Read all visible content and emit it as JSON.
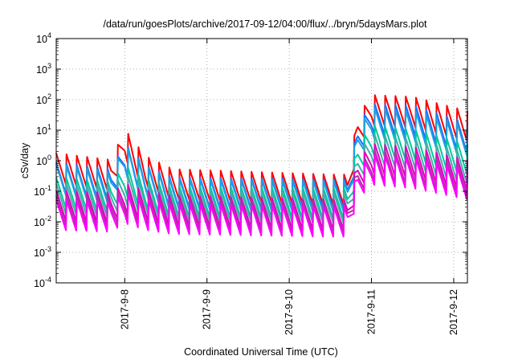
{
  "chart_data": {
    "type": "line",
    "title": "/data/run/goesPlots/archive/2017-09-12/04:00/flux/../bryn/5daysMars.plot",
    "xlabel": "Coordinated Universal Time (UTC)",
    "ylabel": "cSv/day",
    "y_scale": "log",
    "ylim": [
      0.0001,
      10000
    ],
    "xlim": [
      "2017-09-07 04:00",
      "2017-09-12 04:00"
    ],
    "x_ticks": [
      "2017-9-8",
      "2017-9-9",
      "2017-9-10",
      "2017-9-11",
      "2017-9-12"
    ],
    "y_ticks": [
      {
        "base": "10",
        "exp": "-4"
      },
      {
        "base": "10",
        "exp": "-3"
      },
      {
        "base": "10",
        "exp": "-2"
      },
      {
        "base": "10",
        "exp": "-1"
      },
      {
        "base": "10",
        "exp": "0"
      },
      {
        "base": "10",
        "exp": "1"
      },
      {
        "base": "10",
        "exp": "2"
      },
      {
        "base": "10",
        "exp": "3"
      },
      {
        "base": "10",
        "exp": "4"
      }
    ],
    "grid": true,
    "sawtooth_period_hours": 3,
    "series": [
      {
        "color": "#ff0000",
        "points": [
          [
            "2017-09-07 04:00",
            0.5
          ],
          [
            "2017-09-07 20:00",
            0.3
          ],
          [
            "2017-09-08 00:00",
            3.0
          ],
          [
            "2017-09-08 06:00",
            0.4
          ],
          [
            "2017-09-08 14:00",
            0.15
          ],
          [
            "2017-09-10 12:00",
            0.1
          ],
          [
            "2017-09-10 17:00",
            0.1
          ],
          [
            "2017-09-10 20:00",
            8
          ],
          [
            "2017-09-11 00:00",
            40
          ],
          [
            "2017-09-11 12:00",
            35
          ],
          [
            "2017-09-12 04:00",
            12
          ]
        ]
      },
      {
        "color": "#1f6fff",
        "points": [
          [
            "2017-09-07 04:00",
            0.25
          ],
          [
            "2017-09-07 20:00",
            0.15
          ],
          [
            "2017-09-08 00:00",
            1.0
          ],
          [
            "2017-09-08 06:00",
            0.2
          ],
          [
            "2017-09-08 14:00",
            0.08
          ],
          [
            "2017-09-10 12:00",
            0.07
          ],
          [
            "2017-09-10 17:00",
            0.07
          ],
          [
            "2017-09-10 20:00",
            4
          ],
          [
            "2017-09-11 00:00",
            20
          ],
          [
            "2017-09-11 12:00",
            18
          ],
          [
            "2017-09-12 04:00",
            5
          ]
        ]
      },
      {
        "color": "#1ca0e0",
        "points": [
          [
            "2017-09-07 04:00",
            0.22
          ],
          [
            "2017-09-07 20:00",
            0.12
          ],
          [
            "2017-09-08 00:00",
            0.9
          ],
          [
            "2017-09-08 06:00",
            0.18
          ],
          [
            "2017-09-08 14:00",
            0.07
          ],
          [
            "2017-09-10 12:00",
            0.06
          ],
          [
            "2017-09-10 17:00",
            0.06
          ],
          [
            "2017-09-10 20:00",
            3
          ],
          [
            "2017-09-11 00:00",
            15
          ],
          [
            "2017-09-11 12:00",
            12
          ],
          [
            "2017-09-12 04:00",
            4
          ]
        ]
      },
      {
        "color": "#00c8a0",
        "points": [
          [
            "2017-09-07 04:00",
            0.08
          ],
          [
            "2017-09-07 20:00",
            0.06
          ],
          [
            "2017-09-08 00:00",
            0.2
          ],
          [
            "2017-09-08 06:00",
            0.07
          ],
          [
            "2017-09-08 14:00",
            0.04
          ],
          [
            "2017-09-10 12:00",
            0.035
          ],
          [
            "2017-09-10 17:00",
            0.035
          ],
          [
            "2017-09-10 20:00",
            1
          ],
          [
            "2017-09-11 00:00",
            4
          ],
          [
            "2017-09-11 12:00",
            3
          ],
          [
            "2017-09-12 04:00",
            1
          ]
        ]
      },
      {
        "color": "#40b0a8",
        "points": [
          [
            "2017-09-07 04:00",
            0.05
          ],
          [
            "2017-09-07 20:00",
            0.04
          ],
          [
            "2017-09-08 00:00",
            0.1
          ],
          [
            "2017-09-08 06:00",
            0.05
          ],
          [
            "2017-09-08 14:00",
            0.03
          ],
          [
            "2017-09-10 12:00",
            0.025
          ],
          [
            "2017-09-10 17:00",
            0.025
          ],
          [
            "2017-09-10 20:00",
            0.5
          ],
          [
            "2017-09-11 00:00",
            2
          ],
          [
            "2017-09-11 12:00",
            1.5
          ],
          [
            "2017-09-12 04:00",
            0.5
          ]
        ]
      },
      {
        "color": "#e000c0",
        "points": [
          [
            "2017-09-07 04:00",
            0.03
          ],
          [
            "2017-09-07 20:00",
            0.025
          ],
          [
            "2017-09-08 00:00",
            0.05
          ],
          [
            "2017-09-08 06:00",
            0.03
          ],
          [
            "2017-09-08 14:00",
            0.02
          ],
          [
            "2017-09-10 12:00",
            0.015
          ],
          [
            "2017-09-10 17:00",
            0.015
          ],
          [
            "2017-09-10 20:00",
            0.3
          ],
          [
            "2017-09-11 00:00",
            1
          ],
          [
            "2017-09-11 12:00",
            0.8
          ],
          [
            "2017-09-12 04:00",
            0.3
          ]
        ]
      },
      {
        "color": "#b030a0",
        "points": [
          [
            "2017-09-07 04:00",
            0.02
          ],
          [
            "2017-09-07 20:00",
            0.018
          ],
          [
            "2017-09-08 00:00",
            0.035
          ],
          [
            "2017-09-08 06:00",
            0.02
          ],
          [
            "2017-09-08 14:00",
            0.015
          ],
          [
            "2017-09-10 12:00",
            0.012
          ],
          [
            "2017-09-10 17:00",
            0.012
          ],
          [
            "2017-09-10 20:00",
            0.2
          ],
          [
            "2017-09-11 00:00",
            0.6
          ],
          [
            "2017-09-11 12:00",
            0.5
          ],
          [
            "2017-09-12 04:00",
            0.2
          ]
        ]
      },
      {
        "color": "#ff00ff",
        "points": [
          [
            "2017-09-07 04:00",
            0.015
          ],
          [
            "2017-09-07 20:00",
            0.013
          ],
          [
            "2017-09-08 00:00",
            0.025
          ],
          [
            "2017-09-08 06:00",
            0.015
          ],
          [
            "2017-09-08 14:00",
            0.011
          ],
          [
            "2017-09-10 12:00",
            0.009
          ],
          [
            "2017-09-10 17:00",
            0.009
          ],
          [
            "2017-09-10 20:00",
            0.15
          ],
          [
            "2017-09-11 00:00",
            0.45
          ],
          [
            "2017-09-11 12:00",
            0.35
          ],
          [
            "2017-09-12 04:00",
            0.15
          ]
        ]
      }
    ]
  }
}
